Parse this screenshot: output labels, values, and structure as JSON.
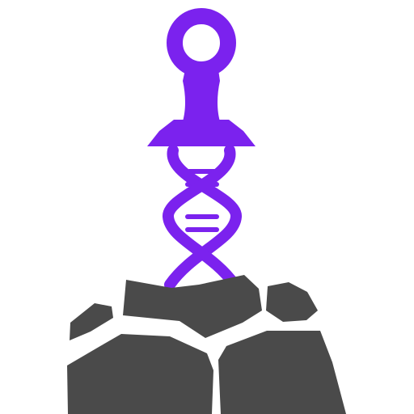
{
  "logo": {
    "icon_name": "sword-in-stone-dna-icon",
    "accent_color": "#7b22ee",
    "stone_color": "#4a4a4a",
    "background": "#ffffff"
  }
}
